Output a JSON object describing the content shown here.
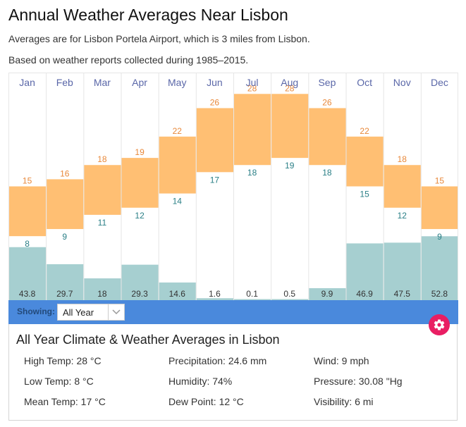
{
  "header": {
    "title": "Annual Weather Averages Near Lisbon",
    "subtitle_1": "Averages are for Lisbon Portela Airport, which is 3 miles from Lisbon.",
    "subtitle_2": "Based on weather reports collected during 1985–2015."
  },
  "chart_data": {
    "type": "bar",
    "title": "Annual Weather Averages Near Lisbon",
    "categories": [
      "Jan",
      "Feb",
      "Mar",
      "Apr",
      "May",
      "Jun",
      "Jul",
      "Aug",
      "Sep",
      "Oct",
      "Nov",
      "Dec"
    ],
    "series": [
      {
        "name": "High Temp (°C)",
        "values": [
          15,
          16,
          18,
          19,
          22,
          26,
          28,
          28,
          26,
          22,
          18,
          15
        ]
      },
      {
        "name": "Low Temp (°C)",
        "values": [
          8,
          9,
          11,
          12,
          14,
          17,
          18,
          19,
          18,
          15,
          12,
          9
        ]
      },
      {
        "name": "Precipitation (mm)",
        "values": [
          43.8,
          29.7,
          18,
          29.3,
          14.6,
          1.6,
          0.1,
          0.5,
          9.9,
          46.9,
          47.5,
          52.8
        ]
      }
    ],
    "temp_range": [
      -1,
      31
    ],
    "precip_range": [
      0,
      188
    ],
    "colors": {
      "temp_band": "#ffbf73",
      "high_label": "#e8883a",
      "low_label": "#2a7f86",
      "precip_bar": "#a6cfd0",
      "month_label": "#5a67a8",
      "grid": "#e6e6e6"
    }
  },
  "controls": {
    "showing_label": "Showing:",
    "selected_period": "All Year"
  },
  "summary": {
    "title": "All Year Climate & Weather Averages in Lisbon",
    "stats": [
      "High Temp: 28 °C",
      "Precipitation: 24.6 mm",
      "Wind: 9 mph",
      "Low Temp: 8 °C",
      "Humidity: 74%",
      "Pressure: 30.08 \"Hg",
      "Mean Temp: 17 °C",
      "Dew Point: 12 °C",
      "Visibility: 6 mi"
    ]
  },
  "icons": {
    "settings": "gear-icon",
    "dropdown": "chevron-down-icon"
  }
}
